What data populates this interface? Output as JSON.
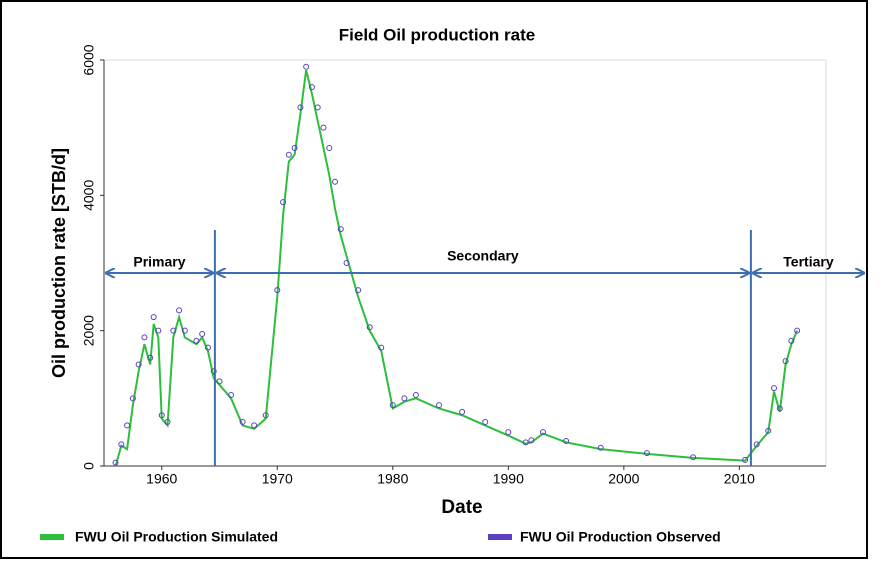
{
  "chart_data": {
    "type": "line",
    "title": "Field Oil production rate",
    "x_label": "Date",
    "y_label": "Oil production rate [STB/d]",
    "x": [
      1956.0,
      1956.5,
      1957.0,
      1957.5,
      1958.0,
      1958.5,
      1959.0,
      1959.3,
      1959.7,
      1960.0,
      1960.5,
      1961.0,
      1961.5,
      1962.0,
      1963.0,
      1963.5,
      1964.0,
      1964.5,
      1965.0,
      1966.0,
      1967.0,
      1968.0,
      1969.0,
      1970.0,
      1970.5,
      1971.0,
      1971.5,
      1972.0,
      1972.5,
      1973.0,
      1973.5,
      1974.0,
      1974.5,
      1975.0,
      1975.5,
      1976.0,
      1977.0,
      1978.0,
      1979.0,
      1980.0,
      1981.0,
      1982.0,
      1984.0,
      1986.0,
      1988.0,
      1990.0,
      1991.5,
      1992.0,
      1993.0,
      1995.0,
      1998.0,
      2002.0,
      2006.0,
      2010.5,
      2011.5,
      2012.5,
      2013.0,
      2013.5,
      2014.0,
      2014.5,
      2015.0
    ],
    "series": [
      {
        "name": "FWU Oil Production Simulated",
        "color": "#2dbe3c",
        "values": [
          0,
          300,
          250,
          900,
          1400,
          1800,
          1500,
          2100,
          1900,
          700,
          600,
          1900,
          2200,
          1900,
          1800,
          1900,
          1700,
          1300,
          1200,
          1000,
          600,
          550,
          700,
          2500,
          3700,
          4500,
          4600,
          5200,
          5850,
          5500,
          5100,
          4700,
          4300,
          3800,
          3400,
          3100,
          2500,
          2000,
          1700,
          850,
          950,
          1000,
          850,
          750,
          600,
          450,
          330,
          350,
          480,
          350,
          250,
          180,
          120,
          80,
          300,
          500,
          1100,
          800,
          1500,
          1800,
          2000
        ]
      },
      {
        "name": "FWU Oil Production Observed",
        "color": "#5b3fc4",
        "values": [
          50,
          320,
          600,
          1000,
          1500,
          1900,
          1600,
          2200,
          2000,
          750,
          650,
          2000,
          2300,
          2000,
          1850,
          1950,
          1750,
          1400,
          1250,
          1050,
          650,
          600,
          750,
          2600,
          3900,
          4600,
          4700,
          5300,
          5900,
          5600,
          5300,
          5000,
          4700,
          4200,
          3500,
          3000,
          2600,
          2050,
          1750,
          900,
          1000,
          1050,
          900,
          800,
          650,
          500,
          350,
          380,
          500,
          370,
          270,
          190,
          130,
          90,
          320,
          520,
          1150,
          850,
          1550,
          1850,
          2000
        ]
      }
    ],
    "xlim": [
      1955,
      2017.5
    ],
    "xticks": [
      1960,
      1970,
      1980,
      1990,
      2000,
      2010
    ],
    "ylim": [
      0,
      6000
    ],
    "yticks": [
      0,
      2000,
      4000,
      6000
    ],
    "phase_boundaries": [
      1964.6,
      2011.0
    ],
    "phases": [
      "Primary",
      "Secondary",
      "Tertiary"
    ]
  }
}
